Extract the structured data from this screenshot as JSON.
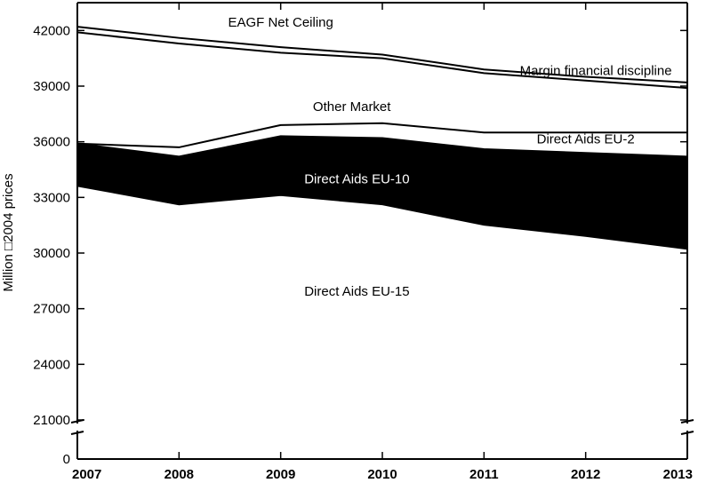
{
  "chart_data": {
    "type": "area",
    "x": [
      2007,
      2008,
      2009,
      2010,
      2011,
      2012,
      2013
    ],
    "ylabel": "Million □2004 prices",
    "ylim": [
      0,
      43500
    ],
    "axis_break": [
      0,
      21000
    ],
    "y_ticks": [
      0,
      21000,
      24000,
      27000,
      30000,
      33000,
      36000,
      39000,
      42000
    ],
    "x_ticks": [
      "2007",
      "2008",
      "2009",
      "2010",
      "2011",
      "2012",
      "2013"
    ],
    "grid": false,
    "boundaries": {
      "eu15_top": [
        33600,
        32600,
        33100,
        32600,
        31500,
        30900,
        30200
      ],
      "eu10_top": [
        35900,
        35200,
        36300,
        36200,
        35600,
        35400,
        35200
      ],
      "eu2_top": [
        35900,
        35700,
        36900,
        37000,
        36500,
        36500,
        36500
      ],
      "net_ceiling_lower": [
        41900,
        41300,
        40800,
        40500,
        39700,
        39300,
        38900
      ],
      "net_ceiling_upper": [
        42200,
        41600,
        41100,
        40700,
        39900,
        39500,
        39200
      ]
    },
    "annotations": [
      {
        "name": "label-eagf",
        "text": "EAGF Net Ceiling",
        "x": 2009.0,
        "y": 42200
      },
      {
        "name": "label-margin",
        "text": "Margin financial discipline",
        "x": 2012.1,
        "y": 39600
      },
      {
        "name": "label-other-market",
        "text": "Other Market",
        "x": 2009.7,
        "y": 37650
      },
      {
        "name": "label-eu2",
        "text": "Direct Aids EU-2",
        "x": 2012.0,
        "y": 35920
      },
      {
        "name": "label-eu10",
        "text": "Direct Aids EU-10",
        "x": 2009.75,
        "y": 33750
      },
      {
        "name": "label-eu15",
        "text": "Direct Aids EU-15",
        "x": 2009.75,
        "y": 27700
      }
    ]
  }
}
